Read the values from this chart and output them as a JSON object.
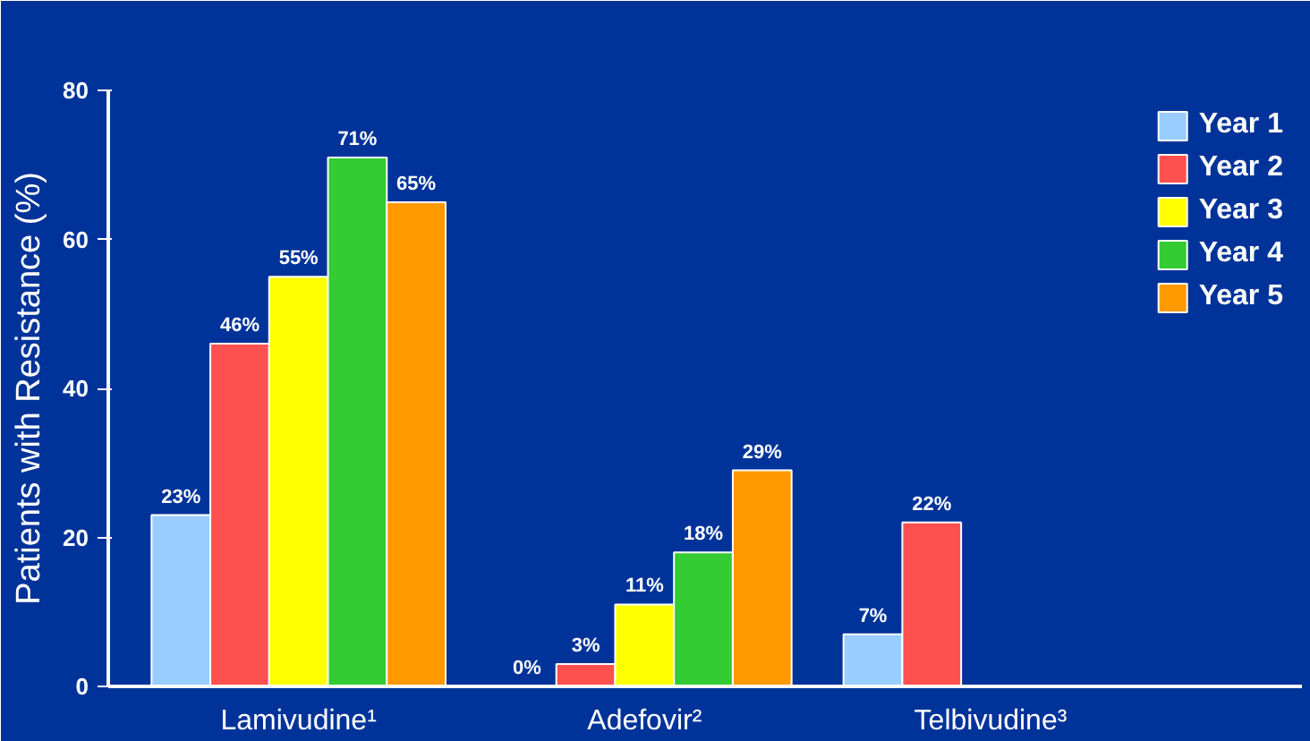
{
  "chart_data": {
    "type": "bar",
    "ylabel": "Patients with Resistance (%)",
    "categories": [
      "Lamivudine¹",
      "Adefovir²",
      "Telbivudine³"
    ],
    "series": [
      {
        "name": "Year 1",
        "color": "#99ccff",
        "values": [
          23,
          0,
          7
        ],
        "value_labels": [
          "23%",
          "0%",
          "7%"
        ]
      },
      {
        "name": "Year 2",
        "color": "#ff5050",
        "values": [
          46,
          3,
          22
        ],
        "value_labels": [
          "46%",
          "3%",
          "22%"
        ]
      },
      {
        "name": "Year 3",
        "color": "#ffff00",
        "values": [
          55,
          11,
          null
        ],
        "value_labels": [
          "55%",
          "11%",
          null
        ]
      },
      {
        "name": "Year 4",
        "color": "#33cc33",
        "values": [
          71,
          18,
          null
        ],
        "value_labels": [
          "71%",
          "18%",
          null
        ]
      },
      {
        "name": "Year 5",
        "color": "#ff9900",
        "values": [
          65,
          29,
          null
        ],
        "value_labels": [
          "65%",
          "29%",
          null
        ]
      }
    ],
    "ylim": [
      0,
      80
    ],
    "yticks": [
      0,
      20,
      40,
      60,
      80
    ],
    "grid": false,
    "legend": "top right"
  }
}
